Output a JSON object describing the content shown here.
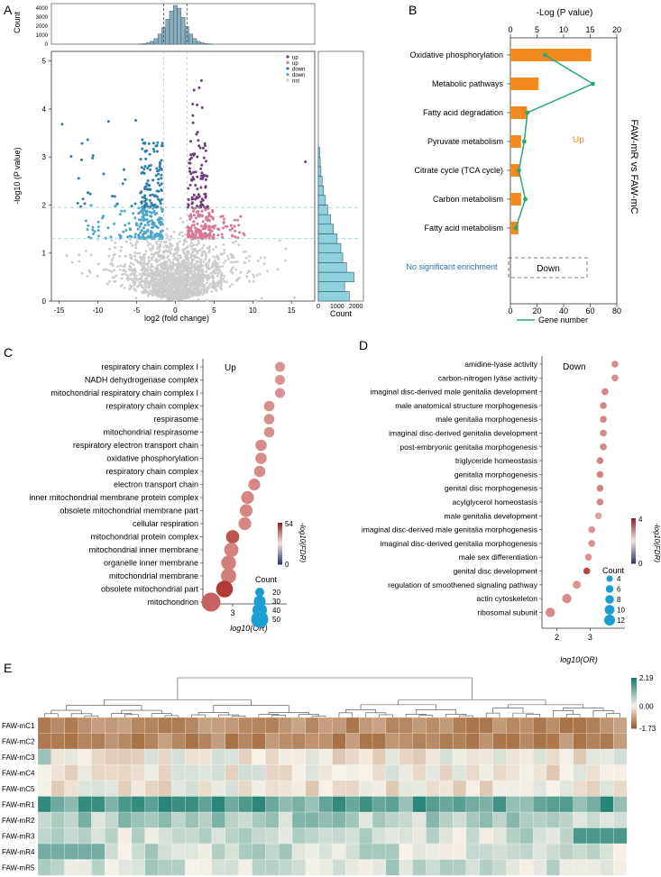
{
  "colors": {
    "up_strong": "#6e3f78",
    "up_light": "#d9779a",
    "down_strong": "#2c7fa6",
    "down_light": "#4fa7c7",
    "nst": "#cccccc",
    "bar_orange": "#f28a1e",
    "line_green": "#2aa876",
    "dot_red_high": "#b13b36",
    "dot_pink_low": "#e8b0b1",
    "count_blue": "#19a0d0",
    "heat_low": "#9c5d2a",
    "heat_mid": "#f7f2ea",
    "heat_high": "#1a7e70"
  },
  "panel_labels": [
    "A",
    "B",
    "C",
    "D",
    "E"
  ],
  "chart_data": [
    {
      "id": "A",
      "type": "scatter",
      "xlabel": "log2 (fold change)",
      "ylabel": "-log10 (P value)",
      "xlim": [
        -16,
        18
      ],
      "ylim": [
        0,
        5.2
      ],
      "xticks": [
        -15,
        -10,
        -5,
        0,
        5,
        10,
        15
      ],
      "yticks": [
        0,
        1,
        2,
        3,
        4,
        5
      ],
      "thresholds": {
        "x": [
          -1.5,
          1.5
        ],
        "y": [
          1.3,
          1.95
        ]
      },
      "legend": [
        "up",
        "up",
        "down",
        "down",
        "nst"
      ],
      "legend_colors": [
        "#6e3f78",
        "#d9779a",
        "#2c7fa6",
        "#4fa7c7",
        "#cccccc"
      ],
      "legend_position": "top-right",
      "top_histogram": {
        "ylabel": "Count",
        "yticks": [
          0,
          1000,
          2000,
          3000,
          4000
        ],
        "x": [
          -4.5,
          -4,
          -3.5,
          -3,
          -2.5,
          -2,
          -1.5,
          -1,
          -0.5,
          0,
          0.5,
          1,
          1.5,
          2,
          2.5,
          3,
          3.5,
          4,
          4.5
        ],
        "values": [
          20,
          60,
          150,
          300,
          600,
          1100,
          1800,
          2700,
          3600,
          4200,
          3900,
          2900,
          1900,
          1100,
          600,
          300,
          150,
          60,
          20
        ]
      },
      "right_histogram": {
        "xlabel": "Count",
        "xticks": [
          0,
          1000,
          2000
        ],
        "y": [
          0.1,
          0.3,
          0.5,
          0.7,
          0.9,
          1.1,
          1.3,
          1.5,
          1.7,
          1.9,
          2.1,
          2.3,
          2.5,
          2.7,
          2.9,
          3.1
        ],
        "values": [
          1650,
          1400,
          1900,
          1500,
          1300,
          1200,
          1000,
          800,
          650,
          500,
          380,
          280,
          200,
          140,
          100,
          70
        ]
      }
    },
    {
      "id": "B",
      "type": "bar",
      "categories": [
        "Oxidative phosphorylation",
        "Metabolic pathways",
        "Fatty acid degradation",
        "Pyruvate metabolism",
        "Citrate cycle (TCA cycle)",
        "Carbon metabolism",
        "Fatty acid metabolism"
      ],
      "top_axis_label": "-Log (P value)",
      "top_ticks": [
        0,
        5,
        10,
        15,
        20
      ],
      "bottom_ticks": [
        0,
        20,
        40,
        60,
        80
      ],
      "series": [
        {
          "values": [
            15.2,
            5.3,
            3.1,
            2.0,
            1.8,
            2.0,
            1.5
          ]
        },
        {
          "name": "Gene number",
          "values": [
            6.5,
            15.5,
            3.2,
            2.6,
            1.6,
            2.8,
            1.0
          ]
        }
      ],
      "side_label": "FAW-mR vs FAW-mC",
      "up_label": "Up",
      "down_label": "Down",
      "no_enrichment_label": "No significant enrichment",
      "legend": "Gene number"
    },
    {
      "id": "C",
      "type": "scatter",
      "title": "Up",
      "categories": [
        "respiratory chain complex I",
        "NADH dehydrogenase complex",
        "mitochondrial respiratory chain complex I",
        "respiratory chain complex",
        "respirasome",
        "mitochondrial respirasome",
        "respiratory electron transport chain",
        "oxidative phosphorylation",
        "respiratory chain complex",
        "electron transport chain",
        "inner mitochondrial membrane protein complex",
        "obsolete mitochondrial membrane part",
        "cellular respiration",
        "mitochondrial protein complex",
        "mitochondrial inner membrane",
        "organelle inner membrane",
        "mitochondrial membrane",
        "obsolete mitochondrial part",
        "mitochondrion"
      ],
      "values": [
        4.75,
        4.75,
        4.75,
        4.35,
        4.35,
        4.35,
        4.05,
        4.05,
        4.0,
        3.8,
        3.55,
        3.5,
        3.45,
        3.0,
        2.95,
        2.85,
        2.85,
        2.7,
        2.2
      ],
      "fdr": [
        10,
        10,
        10,
        11,
        11,
        11,
        12,
        12,
        12,
        13,
        14,
        14,
        14,
        30,
        15,
        16,
        16,
        38,
        25
      ],
      "counts": [
        18,
        18,
        18,
        20,
        20,
        20,
        24,
        24,
        24,
        26,
        30,
        30,
        30,
        32,
        36,
        38,
        40,
        46,
        55
      ],
      "xlabel": "log10(OR)",
      "xticks": [
        3,
        4
      ],
      "xlim": [
        1.9,
        5.0
      ],
      "colorbar_label": "-log10(FDR)",
      "colorbar_ticks": [
        "54",
        "0"
      ],
      "size_legend_title": "Count",
      "size_legend": [
        20,
        30,
        40,
        50
      ]
    },
    {
      "id": "D",
      "type": "scatter",
      "title": "Down",
      "categories": [
        "amidine-lyase activity",
        "carbon-nitrogen lyase activity",
        "imaginal disc-derived male genitalia development",
        "male anatomical structure morphogenesis",
        "male genitalia morphogenesis",
        "imaginal disc-derived genitalia development",
        "post-embryonic genitalia morphogenesis",
        "triglyceride homeostasis",
        "genitalia morphogenesis",
        "genital disc morphogenesis",
        "acylglycerol homeostasis",
        "male genitalia development",
        "imaginal disc-derived male genitalia morphogenesis",
        "imaginal disc-derived genitalia morphogenesis",
        "male sex differentiation",
        "genital disc development",
        "regulation of smoothened signaling pathway",
        "actin cytoskeleton",
        "ribosomal subunit"
      ],
      "values": [
        3.75,
        3.75,
        3.45,
        3.4,
        3.4,
        3.4,
        3.4,
        3.3,
        3.3,
        3.3,
        3.3,
        3.25,
        3.05,
        3.05,
        2.95,
        2.9,
        2.6,
        2.3,
        1.8
      ],
      "fdr": [
        1.2,
        1.2,
        1.5,
        1.4,
        1.4,
        1.4,
        1.4,
        1.5,
        1.5,
        1.5,
        1.5,
        0.5,
        1.0,
        1.0,
        1.1,
        3.6,
        0.9,
        1.2,
        1.3
      ],
      "counts": [
        4,
        4,
        4,
        4,
        4,
        4,
        4,
        4,
        4,
        4,
        4,
        4,
        4,
        4,
        4,
        4,
        5,
        6,
        6
      ],
      "xlabel": "log10(OR)",
      "xticks": [
        2,
        3
      ],
      "xlim": [
        1.55,
        4.05
      ],
      "colorbar_label": "-log10(FDR)",
      "colorbar_ticks": [
        "4",
        "0"
      ],
      "size_legend_title": "Count",
      "size_legend": [
        4,
        6,
        8,
        10,
        12
      ]
    },
    {
      "id": "E",
      "type": "heatmap",
      "rows": [
        "FAW-mC1",
        "FAW-mC2",
        "FAW-mC3",
        "FAW-mC4",
        "FAW-mC5",
        "FAW-mR1",
        "FAW-mR2",
        "FAW-mR3",
        "FAW-mR4",
        "FAW-mR5"
      ],
      "n_columns": 44,
      "colorbar_ticks": [
        "2.19",
        "0.00",
        "-1.73"
      ],
      "vmin": -1.73,
      "vmax": 2.19
    }
  ]
}
